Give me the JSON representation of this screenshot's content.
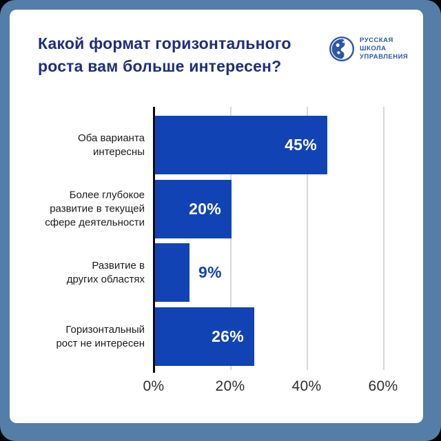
{
  "frame": {
    "background_color": "#547DA8",
    "card_color": "#ffffff"
  },
  "header": {
    "title": "Какой формат горизонтального роста вам больше интересен?",
    "title_lines": [
      "Какой формат горизонтального",
      "роста вам больше интересен?"
    ],
    "title_color": "#1F2E7D"
  },
  "logo": {
    "icon": "globe-logo-icon",
    "lines": [
      "РУССКАЯ",
      "ШКОЛА",
      "УПРАВЛЕНИЯ"
    ],
    "color": "#2B57A8"
  },
  "chart_data": {
    "type": "bar",
    "orientation": "horizontal",
    "title": "Какой формат горизонтального роста вам больше интересен?",
    "categories": [
      "Оба варианта интересны",
      "Более глубокое развитие в текущей сфере деятельности",
      "Развитие в других областях",
      "Горизонтальный рост не интересен"
    ],
    "categories_lines": [
      [
        "Оба варианта",
        "интересны"
      ],
      [
        "Более глубокое",
        "развитие в текущей",
        "сфере деятельности"
      ],
      [
        "Развитие в",
        "других областях"
      ],
      [
        "Горизонтальный",
        "рост не интересен"
      ]
    ],
    "values": [
      45,
      20,
      9,
      26
    ],
    "value_labels": [
      "45%",
      "20%",
      "9%",
      "26%"
    ],
    "value_label_inside": [
      true,
      true,
      false,
      true
    ],
    "x_ticks": [
      "0%",
      "20%",
      "40%",
      "60%"
    ],
    "x_tick_values": [
      0,
      20,
      40,
      60
    ],
    "xlim": [
      0,
      70
    ],
    "bar_color": "#1243B4",
    "grid": true,
    "legend": false
  }
}
